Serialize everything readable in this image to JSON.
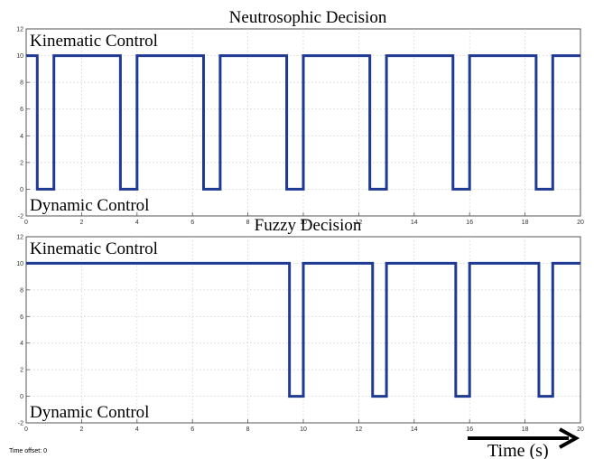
{
  "chart_data": [
    {
      "type": "line",
      "title": "Neutrosophic Decision",
      "annotations": [
        "Kinematic Control",
        "Dynamic Control"
      ],
      "xlim": [
        0,
        20
      ],
      "ylim": [
        -2,
        12
      ],
      "xticks": [
        0,
        2,
        4,
        6,
        8,
        10,
        12,
        14,
        16,
        18,
        20
      ],
      "yticks": [
        -2,
        0,
        2,
        4,
        6,
        8,
        10,
        12
      ],
      "grid": true,
      "step_high": 10,
      "step_low": 0,
      "low_intervals": [
        [
          0.4,
          1.0
        ],
        [
          3.4,
          4.0
        ],
        [
          6.4,
          7.0
        ],
        [
          9.4,
          10.0
        ],
        [
          12.4,
          13.0
        ],
        [
          15.4,
          16.0
        ],
        [
          18.4,
          19.0
        ]
      ],
      "series": [
        {
          "color": "#1f3a93"
        }
      ]
    },
    {
      "type": "line",
      "title": "Fuzzy Decision",
      "annotations": [
        "Kinematic Control",
        "Dynamic Control"
      ],
      "xlim": [
        0,
        20
      ],
      "ylim": [
        -2,
        12
      ],
      "xticks": [
        0,
        2,
        4,
        6,
        8,
        10,
        12,
        14,
        16,
        18,
        20
      ],
      "yticks": [
        -2,
        0,
        2,
        4,
        6,
        8,
        10,
        12
      ],
      "grid": true,
      "step_high": 10,
      "step_low": 0,
      "low_intervals": [
        [
          9.5,
          10.0
        ],
        [
          12.5,
          13.0
        ],
        [
          15.5,
          16.0
        ],
        [
          18.5,
          19.0
        ]
      ],
      "series": [
        {
          "color": "#1f3a93"
        }
      ]
    }
  ],
  "footer": {
    "time_offset": "Time offset: 0",
    "time_label": "Time (s)"
  }
}
